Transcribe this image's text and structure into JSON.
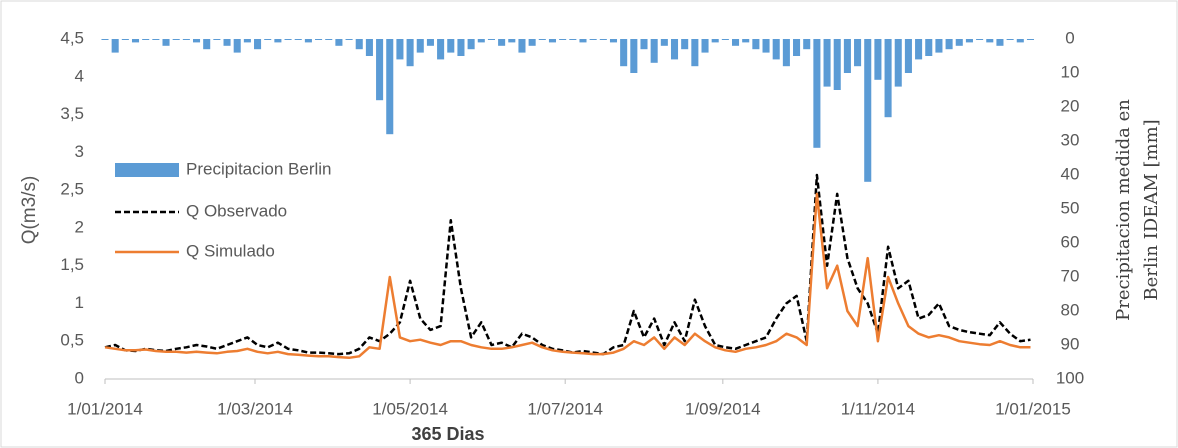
{
  "chart_data": {
    "type": "line",
    "x_label": "365 Dias",
    "y_label": "Q(m3/s)",
    "y2_label": [
      "Precipitacion medida en",
      "Berlin IDEAM  [mm]"
    ],
    "x": [
      "2014-01-01",
      "2014-01-05",
      "2014-01-09",
      "2014-01-13",
      "2014-01-17",
      "2014-01-21",
      "2014-01-25",
      "2014-01-29",
      "2014-02-02",
      "2014-02-06",
      "2014-02-10",
      "2014-02-14",
      "2014-02-18",
      "2014-02-22",
      "2014-02-26",
      "2014-03-02",
      "2014-03-06",
      "2014-03-10",
      "2014-03-14",
      "2014-03-18",
      "2014-03-22",
      "2014-03-26",
      "2014-03-30",
      "2014-04-03",
      "2014-04-07",
      "2014-04-11",
      "2014-04-15",
      "2014-04-19",
      "2014-04-23",
      "2014-04-27",
      "2014-05-01",
      "2014-05-05",
      "2014-05-09",
      "2014-05-13",
      "2014-05-17",
      "2014-05-21",
      "2014-05-25",
      "2014-05-29",
      "2014-06-02",
      "2014-06-06",
      "2014-06-10",
      "2014-06-14",
      "2014-06-18",
      "2014-06-22",
      "2014-06-26",
      "2014-06-30",
      "2014-07-04",
      "2014-07-08",
      "2014-07-12",
      "2014-07-16",
      "2014-07-20",
      "2014-07-24",
      "2014-07-28",
      "2014-08-01",
      "2014-08-05",
      "2014-08-09",
      "2014-08-13",
      "2014-08-17",
      "2014-08-21",
      "2014-08-25",
      "2014-08-29",
      "2014-09-02",
      "2014-09-06",
      "2014-09-10",
      "2014-09-14",
      "2014-09-18",
      "2014-09-22",
      "2014-09-26",
      "2014-09-30",
      "2014-10-04",
      "2014-10-08",
      "2014-10-12",
      "2014-10-16",
      "2014-10-20",
      "2014-10-24",
      "2014-10-28",
      "2014-11-01",
      "2014-11-05",
      "2014-11-09",
      "2014-11-13",
      "2014-11-17",
      "2014-11-21",
      "2014-11-25",
      "2014-11-29",
      "2014-12-03",
      "2014-12-07",
      "2014-12-11",
      "2014-12-15",
      "2014-12-19",
      "2014-12-23",
      "2014-12-27",
      "2014-12-31"
    ],
    "series": [
      {
        "name": "Precipitacion Berlin",
        "type": "bar",
        "axis": "y2",
        "color": "#5b9bd5",
        "values": [
          0,
          4,
          0,
          1,
          0,
          0,
          2,
          0,
          0,
          1,
          3,
          0,
          2,
          4,
          1,
          3,
          0,
          1,
          0,
          0,
          1,
          0,
          0,
          2,
          0,
          3,
          5,
          18,
          28,
          6,
          8,
          4,
          2,
          6,
          4,
          5,
          3,
          1,
          0,
          2,
          1,
          4,
          2,
          0,
          1,
          0,
          0,
          1,
          0,
          0,
          1,
          8,
          10,
          3,
          7,
          2,
          6,
          3,
          8,
          4,
          1,
          0,
          2,
          1,
          3,
          4,
          6,
          8,
          5,
          3,
          32,
          14,
          15,
          10,
          8,
          42,
          12,
          23,
          14,
          10,
          6,
          5,
          4,
          3,
          2,
          1,
          0,
          1,
          2,
          0,
          1,
          0
        ]
      },
      {
        "name": "Q Observado",
        "type": "line",
        "color": "#000000",
        "dash": true,
        "values": [
          0.42,
          0.45,
          0.38,
          0.37,
          0.4,
          0.38,
          0.37,
          0.4,
          0.42,
          0.45,
          0.43,
          0.4,
          0.45,
          0.5,
          0.55,
          0.45,
          0.42,
          0.48,
          0.4,
          0.38,
          0.35,
          0.35,
          0.34,
          0.33,
          0.34,
          0.4,
          0.55,
          0.5,
          0.6,
          0.75,
          1.3,
          0.8,
          0.65,
          0.7,
          2.1,
          1.2,
          0.55,
          0.75,
          0.45,
          0.48,
          0.42,
          0.6,
          0.55,
          0.45,
          0.4,
          0.38,
          0.35,
          0.37,
          0.35,
          0.33,
          0.42,
          0.45,
          0.9,
          0.55,
          0.8,
          0.45,
          0.75,
          0.5,
          1.05,
          0.7,
          0.45,
          0.42,
          0.4,
          0.45,
          0.5,
          0.55,
          0.8,
          1.0,
          1.1,
          0.5,
          2.7,
          1.5,
          2.45,
          1.6,
          1.2,
          1.0,
          0.6,
          1.75,
          1.2,
          1.3,
          0.8,
          0.85,
          1.0,
          0.7,
          0.65,
          0.62,
          0.6,
          0.58,
          0.75,
          0.6,
          0.5,
          0.52
        ]
      },
      {
        "name": "Q Simulado",
        "type": "line",
        "color": "#ed7d31",
        "dash": false,
        "values": [
          0.42,
          0.4,
          0.38,
          0.38,
          0.39,
          0.37,
          0.36,
          0.36,
          0.35,
          0.36,
          0.35,
          0.34,
          0.36,
          0.37,
          0.4,
          0.36,
          0.34,
          0.36,
          0.33,
          0.32,
          0.31,
          0.3,
          0.3,
          0.29,
          0.28,
          0.3,
          0.42,
          0.4,
          1.35,
          0.55,
          0.5,
          0.52,
          0.48,
          0.45,
          0.5,
          0.5,
          0.45,
          0.42,
          0.4,
          0.4,
          0.42,
          0.45,
          0.48,
          0.42,
          0.38,
          0.36,
          0.35,
          0.34,
          0.33,
          0.33,
          0.35,
          0.4,
          0.5,
          0.45,
          0.55,
          0.4,
          0.55,
          0.45,
          0.6,
          0.5,
          0.42,
          0.38,
          0.36,
          0.4,
          0.42,
          0.45,
          0.5,
          0.6,
          0.55,
          0.45,
          2.45,
          1.2,
          1.5,
          0.9,
          0.7,
          1.6,
          0.5,
          1.35,
          1.0,
          0.7,
          0.6,
          0.55,
          0.58,
          0.55,
          0.5,
          0.48,
          0.46,
          0.45,
          0.5,
          0.45,
          0.42,
          0.42
        ]
      }
    ],
    "xlim": [
      "2014-01-01",
      "2015-01-01"
    ],
    "xticks": [
      {
        "value": "2014-01-01",
        "label": "1/01/2014"
      },
      {
        "value": "2014-03-01",
        "label": "1/03/2014"
      },
      {
        "value": "2014-05-01",
        "label": "1/05/2014"
      },
      {
        "value": "2014-07-01",
        "label": "1/07/2014"
      },
      {
        "value": "2014-09-01",
        "label": "1/09/2014"
      },
      {
        "value": "2014-11-01",
        "label": "1/11/2014"
      },
      {
        "value": "2015-01-01",
        "label": "1/01/2015"
      }
    ],
    "ylim": [
      0,
      4.5
    ],
    "yticks": [
      0,
      {
        "value": 0.5,
        "label": "0,5"
      },
      1,
      {
        "value": 1.5,
        "label": "1,5"
      },
      2,
      {
        "value": 2.5,
        "label": "2,5"
      },
      3,
      {
        "value": 3.5,
        "label": "3,5"
      },
      4,
      {
        "value": 4.5,
        "label": "4,5"
      }
    ],
    "y2lim": [
      0,
      100
    ],
    "y2ticks": [
      0,
      10,
      20,
      30,
      40,
      50,
      60,
      70,
      80,
      90,
      100
    ],
    "y2_inverted": true,
    "grid": false,
    "legend": "left"
  }
}
